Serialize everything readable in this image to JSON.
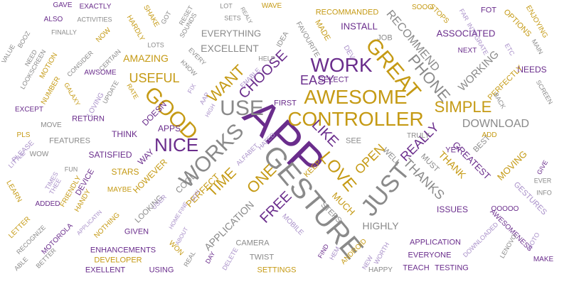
{
  "palette": {
    "gray": "#8a8a8a",
    "gold": "#c59a14",
    "purple": "#6a2d8c",
    "lilac": "#a990c9"
  },
  "words": [
    {
      "text": "APP",
      "color": "purple"
    },
    {
      "text": "GESTURE",
      "color": "gray"
    },
    {
      "text": "CONTROLLER",
      "color": "gold"
    },
    {
      "text": "AWESOME",
      "color": "gold"
    },
    {
      "text": "WORKS",
      "color": "gray"
    },
    {
      "text": "GOOD",
      "color": "gold"
    },
    {
      "text": "USE",
      "color": "gray"
    },
    {
      "text": "JUST",
      "color": "gray"
    },
    {
      "text": "GREAT",
      "color": "gold"
    },
    {
      "text": "WORK",
      "color": "purple"
    },
    {
      "text": "NICE",
      "color": "purple"
    },
    {
      "text": "LOVE",
      "color": "gold"
    },
    {
      "text": "LIKE",
      "color": "purple"
    },
    {
      "text": "SIMPLE",
      "color": "gold"
    },
    {
      "text": "WANT",
      "color": "gold"
    },
    {
      "text": "PHONE",
      "color": "gray"
    },
    {
      "text": "CHOOSE",
      "color": "purple"
    },
    {
      "text": "EASY",
      "color": "purple"
    },
    {
      "text": "USEFUL",
      "color": "gold"
    },
    {
      "text": "ONE",
      "color": "gold"
    },
    {
      "text": "TIME",
      "color": "gold"
    },
    {
      "text": "FREE",
      "color": "purple"
    },
    {
      "text": "OPEN",
      "color": "gold"
    },
    {
      "text": "THANKS",
      "color": "gray"
    },
    {
      "text": "REALLY",
      "color": "purple"
    },
    {
      "text": "DOWNLOAD",
      "color": "gray"
    },
    {
      "text": "RECOMMEND",
      "color": "gray"
    },
    {
      "text": "EXCELLENT",
      "color": "gray"
    },
    {
      "text": "AMAZING",
      "color": "gold"
    },
    {
      "text": "APPLICATION",
      "color": "gray"
    },
    {
      "text": "WORKING",
      "color": "gray"
    },
    {
      "text": "MUCH",
      "color": "gold"
    },
    {
      "text": "HIGHLY",
      "color": "gray"
    },
    {
      "text": "EVERYTHING",
      "color": "gray"
    },
    {
      "text": "ASSOCIATED",
      "color": "purple"
    },
    {
      "text": "INSTALL",
      "color": "purple"
    },
    {
      "text": "RECOMMANDED",
      "color": "gold"
    },
    {
      "text": "THANK",
      "color": "gold"
    },
    {
      "text": "GREATEST",
      "color": "purple"
    },
    {
      "text": "MOVING",
      "color": "gold"
    },
    {
      "text": "GESTURES",
      "color": "lilac"
    },
    {
      "text": "PERFECT",
      "color": "gold"
    },
    {
      "text": "HOWEVER",
      "color": "gold"
    },
    {
      "text": "APPS",
      "color": "purple"
    },
    {
      "text": "STARS",
      "color": "gold"
    },
    {
      "text": "FEATURES",
      "color": "gray"
    },
    {
      "text": "SATISFIED",
      "color": "purple"
    },
    {
      "text": "THINK",
      "color": "purple"
    },
    {
      "text": "WAY",
      "color": "purple"
    },
    {
      "text": "DOESN",
      "color": "purple"
    },
    {
      "text": "COOL",
      "color": "gray"
    },
    {
      "text": "STEPS",
      "color": "gray"
    },
    {
      "text": "ISSUES",
      "color": "purple"
    },
    {
      "text": "ENHANCEMENTS",
      "color": "purple"
    },
    {
      "text": "DEVELOPER",
      "color": "gold"
    },
    {
      "text": "SETTINGS",
      "color": "gold"
    },
    {
      "text": "CAMERA",
      "color": "gray"
    },
    {
      "text": "TWIST",
      "color": "gray"
    },
    {
      "text": "TEACH",
      "color": "purple"
    },
    {
      "text": "TESTING",
      "color": "purple"
    },
    {
      "text": "EVERYONE",
      "color": "purple"
    },
    {
      "text": "NEEDS",
      "color": "purple"
    },
    {
      "text": "FOT",
      "color": "purple"
    },
    {
      "text": "OPTIONS",
      "color": "gold"
    },
    {
      "text": "SELECT",
      "color": "purple"
    },
    {
      "text": "FIRST",
      "color": "purple"
    },
    {
      "text": "BEST",
      "color": "gray"
    },
    {
      "text": "MUST",
      "color": "gray"
    },
    {
      "text": "YET",
      "color": "purple"
    },
    {
      "text": "WELL",
      "color": "gray"
    },
    {
      "text": "TRULY",
      "color": "gray"
    },
    {
      "text": "SEE",
      "color": "gray"
    },
    {
      "text": "ADD",
      "color": "gold"
    },
    {
      "text": "KEEP",
      "color": "gold"
    },
    {
      "text": "MOBILE",
      "color": "lilac"
    },
    {
      "text": "HATED",
      "color": "lilac"
    },
    {
      "text": "ALFABET",
      "color": "lilac"
    },
    {
      "text": "ENABLE",
      "color": "lilac"
    },
    {
      "text": "HELP",
      "color": "gray"
    },
    {
      "text": "IDEA",
      "color": "gray"
    },
    {
      "text": "FAVOURITE",
      "color": "gray"
    },
    {
      "text": "MADE",
      "color": "gold"
    },
    {
      "text": "DEV",
      "color": "lilac"
    },
    {
      "text": "JOB",
      "color": "gray"
    },
    {
      "text": "SOOO",
      "color": "gold"
    },
    {
      "text": "STOPS",
      "color": "gold"
    },
    {
      "text": "FAR",
      "color": "lilac"
    },
    {
      "text": "INTEGRATE",
      "color": "lilac"
    },
    {
      "text": "ENJOYING",
      "color": "gold"
    },
    {
      "text": "MAIN",
      "color": "gray"
    },
    {
      "text": "NEXT",
      "color": "purple"
    },
    {
      "text": "ETC",
      "color": "lilac"
    },
    {
      "text": "PERFECTLY",
      "color": "gold"
    },
    {
      "text": "BACK",
      "color": "gray"
    },
    {
      "text": "SCREEN",
      "color": "gray"
    },
    {
      "text": "WAVE",
      "color": "gold"
    },
    {
      "text": "LOT",
      "color": "gray"
    },
    {
      "text": "REALY",
      "color": "gray"
    },
    {
      "text": "SETS",
      "color": "gray"
    },
    {
      "text": "GOT",
      "color": "gray"
    },
    {
      "text": "RESET",
      "color": "gray"
    },
    {
      "text": "SOUNDS",
      "color": "gray"
    },
    {
      "text": "SHAKE",
      "color": "gold"
    },
    {
      "text": "HARDLY",
      "color": "gold"
    },
    {
      "text": "GAVE",
      "color": "purple"
    },
    {
      "text": "EXACTLY",
      "color": "purple"
    },
    {
      "text": "ALSO",
      "color": "purple"
    },
    {
      "text": "ACTIVITIES",
      "color": "gray"
    },
    {
      "text": "FINALLY",
      "color": "gray"
    },
    {
      "text": "BOOZ",
      "color": "gray"
    },
    {
      "text": "NOW",
      "color": "gold"
    },
    {
      "text": "VALUE",
      "color": "gray"
    },
    {
      "text": "NEED",
      "color": "gray"
    },
    {
      "text": "LOOKSCREEN",
      "color": "gray"
    },
    {
      "text": "MOTION",
      "color": "gold"
    },
    {
      "text": "CONSIDER",
      "color": "gray"
    },
    {
      "text": "CERTAIN",
      "color": "gray"
    },
    {
      "text": "LOTS",
      "color": "gray"
    },
    {
      "text": "AWSOME",
      "color": "purple"
    },
    {
      "text": "NUMBER",
      "color": "gold"
    },
    {
      "text": "GALAXY",
      "color": "gold"
    },
    {
      "text": "UPDATE",
      "color": "gray"
    },
    {
      "text": "RATE",
      "color": "gold"
    },
    {
      "text": "LOVING",
      "color": "lilac"
    },
    {
      "text": "EVERY",
      "color": "gray"
    },
    {
      "text": "KNOW",
      "color": "gray"
    },
    {
      "text": "FIX",
      "color": "lilac"
    },
    {
      "text": "AAP",
      "color": "lilac"
    },
    {
      "text": "HIGH",
      "color": "lilac"
    },
    {
      "text": "EXCEPT",
      "color": "purple"
    },
    {
      "text": "RETURN",
      "color": "purple"
    },
    {
      "text": "PLS",
      "color": "gold"
    },
    {
      "text": "MOVE",
      "color": "gray"
    },
    {
      "text": "PLEASE",
      "color": "lilac"
    },
    {
      "text": "LITTLE",
      "color": "lilac"
    },
    {
      "text": "WOW",
      "color": "gray"
    },
    {
      "text": "FUN",
      "color": "gray"
    },
    {
      "text": "TIMES",
      "color": "lilac"
    },
    {
      "text": "THEE",
      "color": "lilac"
    },
    {
      "text": "FRIENDLY",
      "color": "gold"
    },
    {
      "text": "DEVICE",
      "color": "purple"
    },
    {
      "text": "MAYBE",
      "color": "gold"
    },
    {
      "text": "LEARN",
      "color": "gold"
    },
    {
      "text": "ADDED",
      "color": "purple"
    },
    {
      "text": "HANDY",
      "color": "gold"
    },
    {
      "text": "LETTER",
      "color": "gold"
    },
    {
      "text": "RECOGNIZE",
      "color": "gray"
    },
    {
      "text": "MOTOROLA",
      "color": "purple"
    },
    {
      "text": "APPLICATIN",
      "color": "lilac"
    },
    {
      "text": "NOTHING",
      "color": "gold"
    },
    {
      "text": "BETTER",
      "color": "gray"
    },
    {
      "text": "ABLE",
      "color": "gray"
    },
    {
      "text": "EXELLENT",
      "color": "purple"
    },
    {
      "text": "USING",
      "color": "purple"
    },
    {
      "text": "GIVEN",
      "color": "purple"
    },
    {
      "text": "LOOKING",
      "color": "gray"
    },
    {
      "text": "USER",
      "color": "lilac"
    },
    {
      "text": "DON",
      "color": "lilac"
    },
    {
      "text": "FINE",
      "color": "lilac"
    },
    {
      "text": "HOME",
      "color": "lilac"
    },
    {
      "text": "ABOUT",
      "color": "lilac"
    },
    {
      "text": "WON",
      "color": "gold"
    },
    {
      "text": "REAL",
      "color": "gray"
    },
    {
      "text": "DAY",
      "color": "purple"
    },
    {
      "text": "DELETE",
      "color": "lilac"
    },
    {
      "text": "FIND",
      "color": "purple"
    },
    {
      "text": "HEM",
      "color": "lilac"
    },
    {
      "text": "ANDROID",
      "color": "gold"
    },
    {
      "text": "NEW",
      "color": "lilac"
    },
    {
      "text": "WORTH",
      "color": "lilac"
    },
    {
      "text": "HAPPY",
      "color": "gray"
    },
    {
      "text": "APPLICATION",
      "color": "purple"
    },
    {
      "text": "DOWNLOADED",
      "color": "lilac"
    },
    {
      "text": "AWESOMENESS",
      "color": "purple"
    },
    {
      "text": "LENOVO",
      "color": "gray"
    },
    {
      "text": "MOTO",
      "color": "lilac"
    },
    {
      "text": "MAKE",
      "color": "purple"
    },
    {
      "text": "INFO",
      "color": "gray"
    },
    {
      "text": "EVER",
      "color": "gray"
    },
    {
      "text": "GIVE",
      "color": "purple"
    },
    {
      "text": "OOOOO",
      "color": "purple"
    }
  ]
}
